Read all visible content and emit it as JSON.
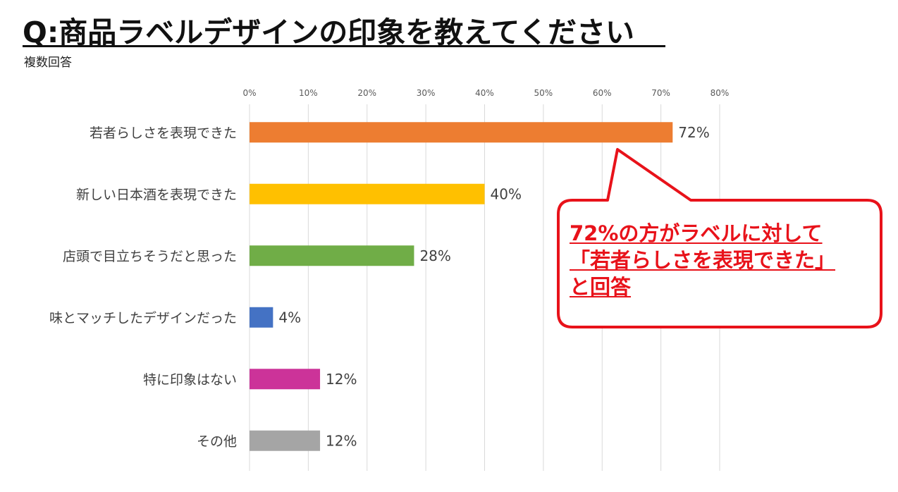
{
  "title": "Q:商品ラベルデザインの印象を教えてください",
  "subtitle": "複数回答",
  "chart_data": {
    "type": "bar",
    "orientation": "horizontal",
    "xlim": [
      0,
      80
    ],
    "tick_values": [
      0,
      10,
      20,
      30,
      40,
      50,
      60,
      70,
      80
    ],
    "tick_labels": [
      "0%",
      "10%",
      "20%",
      "30%",
      "40%",
      "50%",
      "60%",
      "70%",
      "80%"
    ],
    "categories": [
      "若者らしさを表現できた",
      "新しい日本酒を表現できた",
      "店頭で目立ちそうだと思った",
      "味とマッチしたデザインだった",
      "特に印象はない",
      "その他"
    ],
    "values": [
      72,
      40,
      28,
      4,
      12,
      12
    ],
    "data_labels": [
      "72%",
      "40%",
      "28%",
      "4%",
      "12%",
      "12%"
    ],
    "colors": [
      "#ed7d31",
      "#ffc000",
      "#70ad47",
      "#4472c4",
      "#cc3399",
      "#a5a5a5"
    ],
    "grid": true,
    "gridline_color": "#d9d9d9",
    "legend": "none"
  },
  "callout": {
    "lines": [
      "72%の方がラベルに対して",
      "「若者らしさを表現できた」",
      "と回答"
    ],
    "color": "#e8121a"
  }
}
